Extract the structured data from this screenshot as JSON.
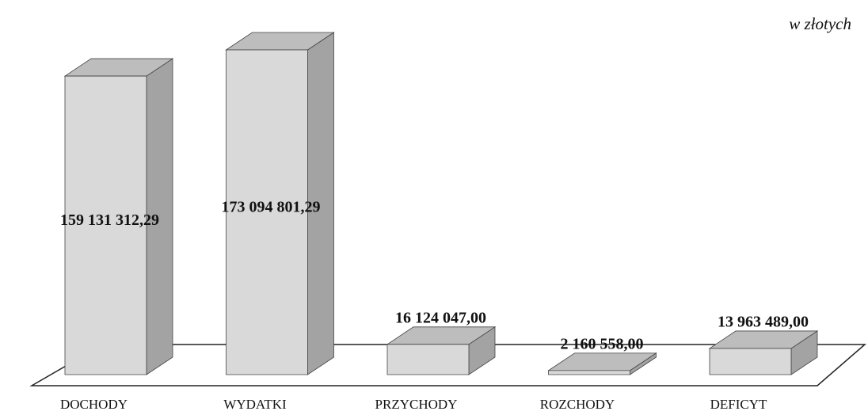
{
  "chart_data": {
    "type": "bar3d",
    "subtitle": "w złotych",
    "categories": [
      "DOCHODY",
      "WYDATKI",
      "PRZYCHODY",
      "ROZCHODY",
      "DEFICYT"
    ],
    "values": [
      159131312.29,
      173094801.29,
      16124047.0,
      2160558.0,
      13963489.0
    ],
    "value_labels": [
      "159 131 312,29",
      "173 094 801,29",
      "16 124 047,00",
      "2 160 558,00",
      "13 963 489,00"
    ],
    "color": "#d9d9d9"
  }
}
